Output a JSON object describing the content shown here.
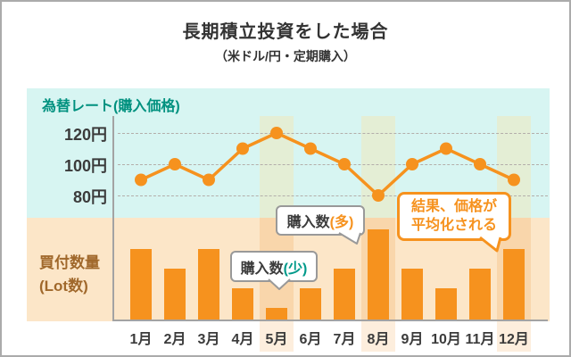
{
  "card": {
    "title": "長期積立投資をした場合",
    "subtitle": "（米ドル/円・定期購入）"
  },
  "rate_chart": {
    "label": "為替レート(購入価格)"
  },
  "lot_chart": {
    "label_line1": "買付数量",
    "label_line2": "(Lot数)"
  },
  "callouts": {
    "few": {
      "text": "購入数",
      "highlight": "(少)"
    },
    "many": {
      "text": "購入数",
      "highlight": "(多)"
    },
    "result": {
      "line1": "結果、価格が",
      "line2": "平均化される"
    }
  },
  "chart_data": {
    "type": "combo",
    "months": [
      "1月",
      "2月",
      "3月",
      "4月",
      "5月",
      "6月",
      "7月",
      "8月",
      "9月",
      "10月",
      "11月",
      "12月"
    ],
    "series": [
      {
        "name": "為替レート(購入価格)",
        "type": "line",
        "unit": "円",
        "values": [
          90,
          100,
          90,
          110,
          120,
          110,
          100,
          80,
          100,
          110,
          100,
          90
        ]
      },
      {
        "name": "買付数量(Lot数)",
        "type": "bar",
        "unit": "relative lots",
        "values": [
          7.9,
          5.7,
          7.9,
          3.5,
          1.3,
          3.5,
          5.7,
          10.1,
          5.7,
          3.5,
          5.7,
          7.9
        ]
      }
    ],
    "rate_axis": {
      "ticks": [
        120,
        100,
        80
      ],
      "unit": "円",
      "range": [
        70,
        130
      ]
    },
    "highlighted_months": [
      "5月",
      "8月",
      "12月"
    ],
    "legend_position": "none",
    "grid": "dashed"
  },
  "colors": {
    "orange": "#f6921e",
    "teal": "#00917f",
    "brown": "#a0682b",
    "cyan_bg": "#d7f5f2",
    "peach_bg": "#fce6c8",
    "band_green": "#e4eed5",
    "band_peach": "#f9d6ab",
    "band_peach_light": "#fdeedd",
    "grid_line": "#b3aeaa",
    "axis_line": "#a3a3a3",
    "card_border": "#ababab",
    "text_dark": "#3b3b3b",
    "callout_gray": "#999999"
  }
}
